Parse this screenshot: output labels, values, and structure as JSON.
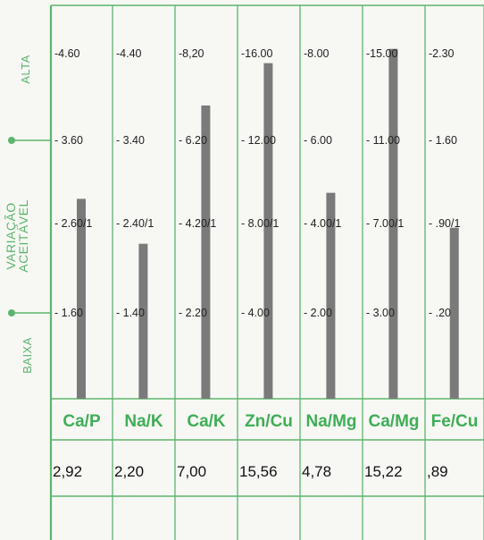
{
  "colors": {
    "grid": "#5db56d",
    "bar": "#7a7a7a",
    "header_text": "#3fae57",
    "tick_text": "#222222",
    "value_text": "#111111",
    "background": "#f7f8f4"
  },
  "labels": {
    "high": "ALTA",
    "acceptable_line1": "VARIAÇÃO",
    "acceptable_line2": "ACEITÁVEL",
    "low": "BAIXA"
  },
  "chart_data": {
    "type": "bar",
    "categories": [
      "Ca/P",
      "Na/K",
      "Ca/K",
      "Zn/Cu",
      "Na/Mg",
      "Ca/Mg",
      "Fe/Cu"
    ],
    "values": [
      "2,92",
      "2,20",
      "7,00",
      "15,56",
      "4,78",
      "15,22",
      ",89"
    ],
    "value_numbers": [
      2.92,
      2.2,
      7.0,
      15.56,
      4.78,
      15.22,
      0.89
    ],
    "tick_labels": [
      [
        "-4.60",
        "- 3.60",
        "- 2.60/1",
        "- 1.60"
      ],
      [
        "-4.40",
        "- 3.40",
        "- 2.40/1",
        "- 1.40"
      ],
      [
        "-8,20",
        "- 6.20",
        "- 4.20/1",
        "- 2.20"
      ],
      [
        "-16.00",
        "- 12.00",
        "- 8.00/1",
        "- 4.00"
      ],
      [
        "-8.00",
        "- 6.00",
        "- 4.00/1",
        "- 2.00"
      ],
      [
        "-15.00",
        "- 11.00",
        "- 7.00/1",
        "- 3.00"
      ],
      [
        "-2.30",
        "- 1.60",
        "- .90/1",
        "- .20"
      ]
    ],
    "tick_values": [
      [
        4.6,
        3.6,
        2.6,
        1.6
      ],
      [
        4.4,
        3.4,
        2.4,
        1.4
      ],
      [
        8.2,
        6.2,
        4.2,
        2.2
      ],
      [
        16.0,
        12.0,
        8.0,
        4.0
      ],
      [
        8.0,
        6.0,
        4.0,
        2.0
      ],
      [
        15.0,
        11.0,
        7.0,
        3.0
      ],
      [
        2.3,
        1.6,
        0.9,
        0.2
      ]
    ],
    "grid": true
  }
}
